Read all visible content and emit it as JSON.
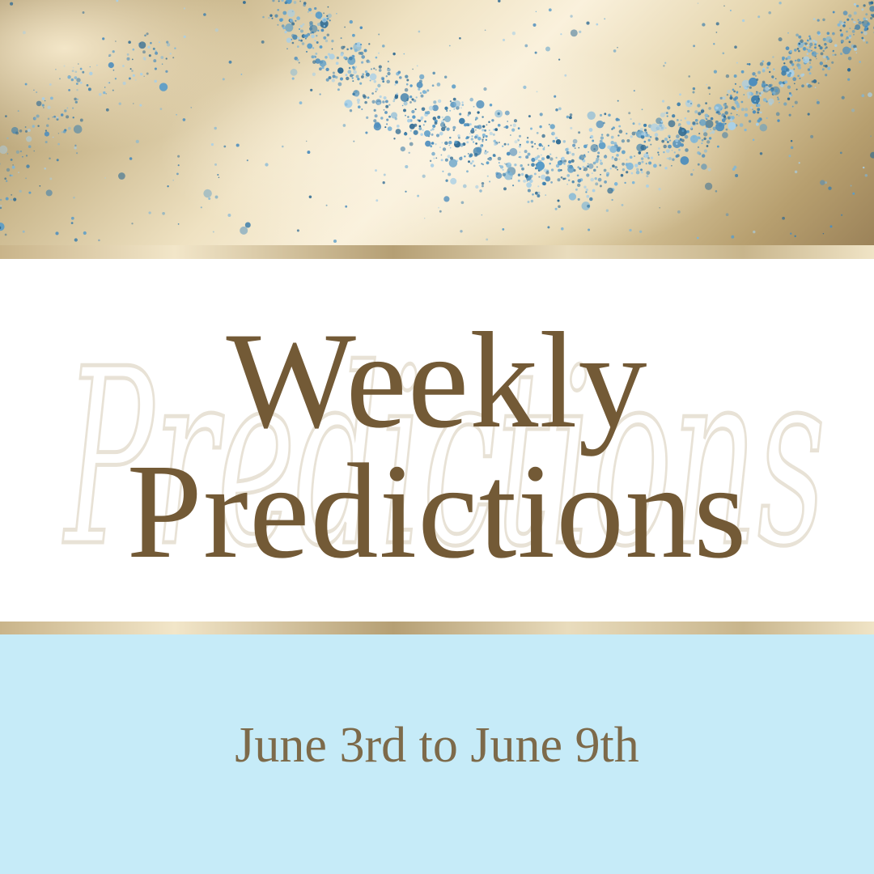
{
  "title": {
    "line1": "Weekly",
    "line2": "Predictions",
    "watermark": "Predictions"
  },
  "date_range": "June 3rd to June 9th",
  "colors": {
    "title_text": "#735a36",
    "date_text": "#7d6a4a",
    "blue_panel": "#c6ebf8",
    "gold": "#d9c8a0",
    "glitter": "#4f8fb8",
    "watermark": "#e8e2d6"
  },
  "decoration": {
    "top_banner": "gold-gradient-with-blue-glitter-swirl"
  }
}
